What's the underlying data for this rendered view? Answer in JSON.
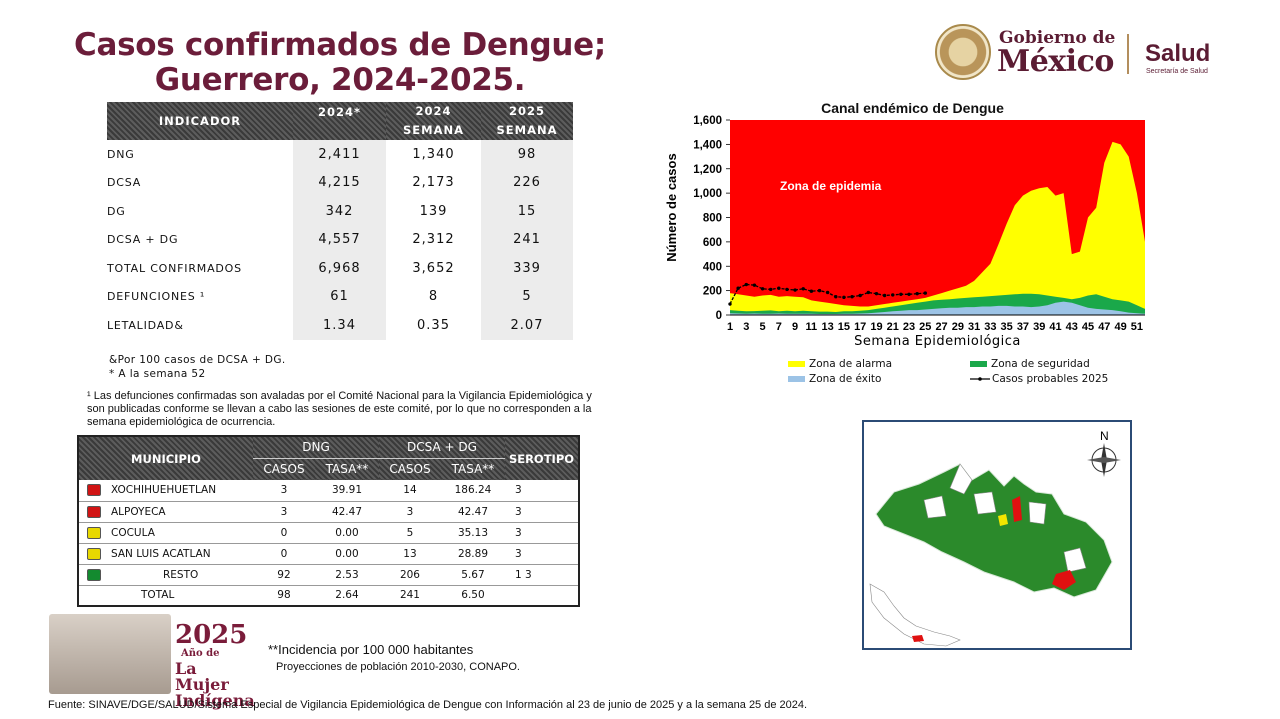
{
  "title_line1": "Casos confirmados de Dengue;",
  "title_line2": "Guerrero, 2024-2025.",
  "logo": {
    "gobierno": "Gobierno de",
    "mexico": "México",
    "salud": "Salud",
    "salud_sub": "Secretaría de Salud"
  },
  "indicator_table": {
    "headers": [
      "INDICADOR",
      "2024*",
      "2024",
      "SEMANA",
      "2025",
      "SEMANA"
    ],
    "rows": [
      {
        "label": "DNG",
        "a": "2,411",
        "b": "1,340",
        "c": "98"
      },
      {
        "label": "DCSA",
        "a": "4,215",
        "b": "2,173",
        "c": "226"
      },
      {
        "label": "DG",
        "a": "342",
        "b": "139",
        "c": "15"
      },
      {
        "label": "DCSA + DG",
        "a": "4,557",
        "b": "2,312",
        "c": "241"
      },
      {
        "label": "TOTAL CONFIRMADOS",
        "a": "6,968",
        "b": "3,652",
        "c": "339"
      },
      {
        "label": "DEFUNCIONES ¹",
        "a": "61",
        "b": "8",
        "c": "5"
      },
      {
        "label": "LETALIDAD&",
        "a": "1.34",
        "b": "0.35",
        "c": "2.07"
      }
    ]
  },
  "notes": {
    "letalidad": "&Por 100 casos de DCSA + DG.",
    "semana": "* A la semana 52",
    "defunciones": "¹ Las defunciones confirmadas son avaladas por el Comité Nacional para la Vigilancia Epidemiológica y son publicadas conforme se llevan a cabo las sesiones de este comité, por lo que no corresponden a la semana epidemiológica de ocurrencia."
  },
  "municipio_table": {
    "header_municipio": "MUNICIPIO",
    "header_dng": "DNG",
    "header_dcsa": "DCSA + DG",
    "header_serotipo": "SEROTIPO",
    "sub_casos": "CASOS",
    "sub_tasa": "TASA**",
    "rows": [
      {
        "name": "XOCHIHUEHUETLAN",
        "color": "#d11414",
        "c1": "3",
        "t1": "39.91",
        "c2": "14",
        "t2": "186.24",
        "sero": "3"
      },
      {
        "name": "ALPOYECA",
        "color": "#d11414",
        "c1": "3",
        "t1": "42.47",
        "c2": "3",
        "t2": "42.47",
        "sero": "3"
      },
      {
        "name": "COCULA",
        "color": "#e8d800",
        "c1": "0",
        "t1": "0.00",
        "c2": "5",
        "t2": "35.13",
        "sero": "3"
      },
      {
        "name": "SAN LUIS ACATLAN",
        "color": "#e8d800",
        "c1": "0",
        "t1": "0.00",
        "c2": "13",
        "t2": "28.89",
        "sero": "3"
      },
      {
        "name": "RESTO",
        "color": "#138a2f",
        "c1": "92",
        "t1": "2.53",
        "c2": "206",
        "t2": "5.67",
        "sero": "1     3"
      },
      {
        "name": "TOTAL",
        "color": "",
        "c1": "98",
        "t1": "2.64",
        "c2": "241",
        "t2": "6.50",
        "sero": ""
      }
    ]
  },
  "mujer": {
    "year": "2025",
    "line1": "Año de",
    "line2": "La Mujer",
    "line3": "Indígena"
  },
  "incidencia": "**Incidencia por 100 000 habitantes",
  "proyecciones": "Proyecciones de población 2010-2030,  CONAPO.",
  "fuente": "Fuente: SINAVE/DGE/SALUD/Sistema Especial de Vigilancia Epidemiológica de Dengue con Información al 23 de junio de 2025 y a la semana 25 de 2024.",
  "map_north": "N",
  "colors": {
    "epidemia": "#ff0000",
    "alarma": "#ffff00",
    "seguridad": "#1aa84a",
    "exito": "#9cc3e6",
    "casos": "#000000",
    "title": "#6b1d3a"
  },
  "chart_data": {
    "type": "area",
    "title": "Canal endémico de Dengue",
    "xlabel": "Semana Epidemiológica",
    "ylabel": "Número de casos",
    "annotation": "Zona de epidemia",
    "ylim": [
      0,
      1600
    ],
    "yticks": [
      0,
      200,
      400,
      600,
      800,
      1000,
      1200,
      1400,
      1600
    ],
    "xlim": [
      1,
      52
    ],
    "xticks": [
      1,
      3,
      5,
      7,
      9,
      11,
      13,
      15,
      17,
      19,
      21,
      23,
      25,
      27,
      29,
      31,
      33,
      35,
      37,
      39,
      41,
      43,
      45,
      47,
      49,
      51
    ],
    "legend_position": "bottom",
    "series": [
      {
        "name": "Zona de éxito",
        "values": [
          15,
          12,
          10,
          12,
          10,
          10,
          12,
          10,
          10,
          10,
          10,
          8,
          8,
          8,
          10,
          10,
          12,
          15,
          20,
          25,
          30,
          35,
          40,
          40,
          45,
          50,
          55,
          60,
          60,
          65,
          65,
          70,
          70,
          75,
          75,
          70,
          70,
          65,
          70,
          80,
          100,
          110,
          100,
          80,
          60,
          50,
          45,
          40,
          30,
          20,
          15,
          10
        ]
      },
      {
        "name": "Zona de seguridad",
        "values": [
          40,
          35,
          30,
          32,
          35,
          38,
          30,
          35,
          30,
          35,
          30,
          28,
          28,
          25,
          30,
          30,
          35,
          40,
          50,
          60,
          70,
          80,
          90,
          100,
          110,
          120,
          125,
          130,
          135,
          140,
          145,
          150,
          155,
          160,
          165,
          170,
          175,
          175,
          170,
          160,
          150,
          140,
          130,
          140,
          160,
          170,
          150,
          130,
          120,
          110,
          80,
          50
        ]
      },
      {
        "name": "Zona de alarma",
        "values": [
          180,
          170,
          160,
          150,
          160,
          165,
          150,
          155,
          150,
          145,
          120,
          110,
          100,
          90,
          80,
          75,
          70,
          70,
          80,
          90,
          100,
          110,
          120,
          130,
          140,
          160,
          180,
          200,
          220,
          240,
          280,
          350,
          420,
          580,
          750,
          900,
          980,
          1020,
          1040,
          1050,
          980,
          1000,
          500,
          520,
          800,
          880,
          1250,
          1420,
          1400,
          1300,
          1000,
          600
        ]
      },
      {
        "name": "Casos probables 2025",
        "values": [
          90,
          220,
          250,
          245,
          215,
          210,
          220,
          210,
          205,
          215,
          195,
          200,
          185,
          150,
          145,
          150,
          160,
          185,
          175,
          160,
          165,
          170,
          170,
          175,
          180
        ]
      }
    ]
  }
}
